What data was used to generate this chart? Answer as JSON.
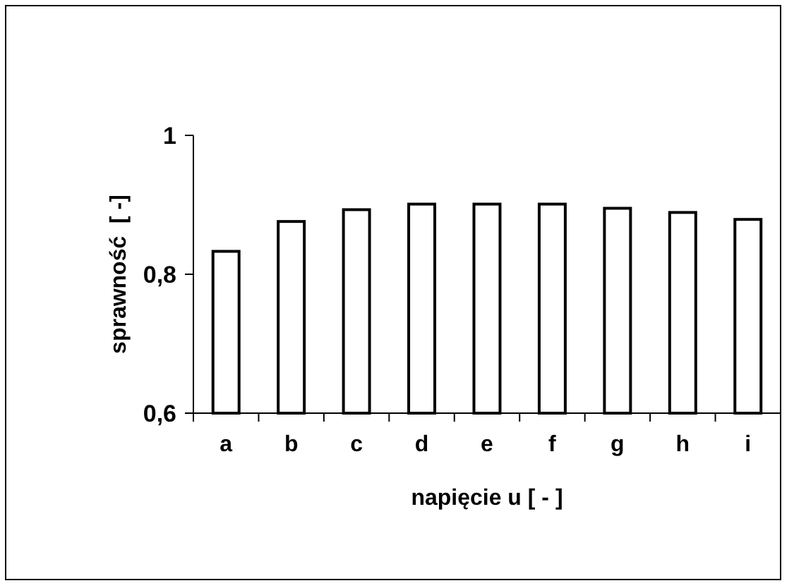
{
  "chart_data": {
    "type": "bar",
    "xlabel": "napięcie u [ - ]",
    "ylabel": "sprawność  [ -]",
    "categories": [
      "a",
      "b",
      "c",
      "d",
      "e",
      "f",
      "g",
      "h",
      "i"
    ],
    "values": [
      0.833,
      0.876,
      0.893,
      0.901,
      0.901,
      0.901,
      0.895,
      0.889,
      0.879
    ],
    "color": "#ffffff",
    "ylim": [
      0.6,
      1
    ],
    "yticks": [
      {
        "value": 0.6,
        "label": "0,6"
      },
      {
        "value": 0.8,
        "label": "0,8"
      },
      {
        "value": 1,
        "label": "1"
      }
    ],
    "grid": false
  }
}
